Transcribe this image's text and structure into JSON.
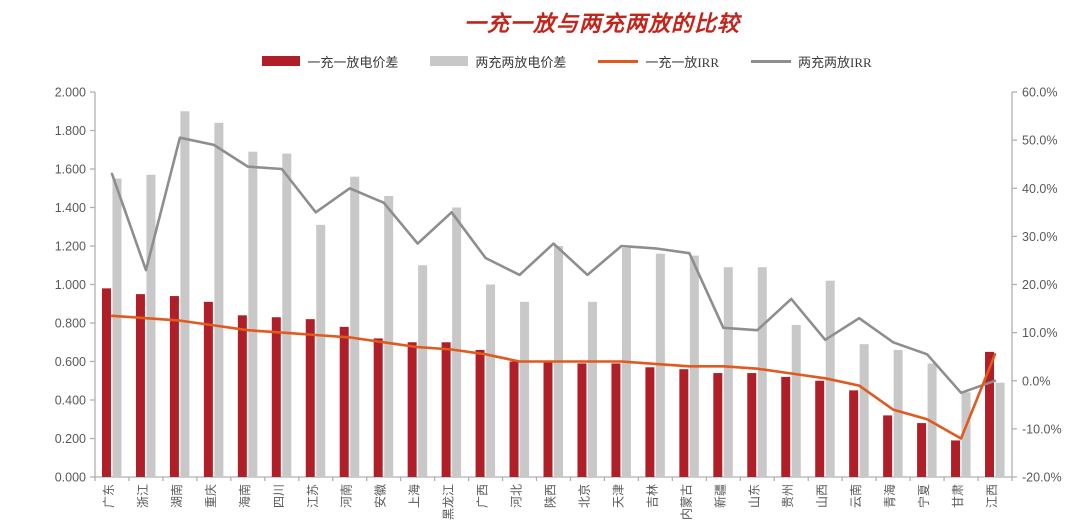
{
  "title": "一充一放与两充两放的比较",
  "legend": {
    "items": [
      {
        "label": "一充一放电价差",
        "swatch": "bar"
      },
      {
        "label": "两充两放电价差",
        "swatch": "bar"
      },
      {
        "label": "一充一放IRR",
        "swatch": "line"
      },
      {
        "label": "两充两放IRR",
        "swatch": "line"
      }
    ]
  },
  "colors": {
    "title_red": "#c1261d",
    "bar_red": "#b01e28",
    "bar_gray": "#c8c8c8",
    "line_orange": "#e05a1f",
    "line_gray": "#8e8e8e",
    "axis_line": "#b0b0b0",
    "tick_label": "#595959"
  },
  "chart_data": {
    "type": "bar",
    "subtype": "dual-axis bar+line combo",
    "title": "一充一放与两充两放的比较",
    "grid": false,
    "legend_position": "top",
    "categories": [
      "广东",
      "浙江",
      "湖南",
      "重庆",
      "海南",
      "四川",
      "江苏",
      "河南",
      "安徽",
      "上海",
      "黑龙江",
      "广西",
      "河北",
      "陕西",
      "北京",
      "天津",
      "吉林",
      "内蒙古",
      "新疆",
      "山东",
      "贵州",
      "山西",
      "云南",
      "青海",
      "宁夏",
      "甘肃",
      "江西"
    ],
    "series": [
      {
        "name": "一充一放电价差",
        "type": "bar",
        "axis": "left",
        "color": "#b01e28",
        "values": [
          0.98,
          0.95,
          0.94,
          0.91,
          0.84,
          0.83,
          0.82,
          0.78,
          0.72,
          0.7,
          0.7,
          0.66,
          0.6,
          0.6,
          0.59,
          0.59,
          0.57,
          0.56,
          0.54,
          0.54,
          0.52,
          0.5,
          0.45,
          0.32,
          0.28,
          0.19,
          0.65
        ]
      },
      {
        "name": "两充两放电价差",
        "type": "bar",
        "axis": "left",
        "color": "#c8c8c8",
        "values": [
          1.55,
          1.57,
          1.9,
          1.84,
          1.69,
          1.68,
          1.31,
          1.56,
          1.46,
          1.1,
          1.4,
          1.0,
          0.91,
          1.2,
          0.91,
          1.19,
          1.16,
          1.15,
          1.09,
          1.09,
          0.79,
          1.02,
          0.69,
          0.66,
          0.59,
          0.44,
          0.49
        ]
      },
      {
        "name": "一充一放IRR",
        "type": "line",
        "axis": "right",
        "color": "#e05a1f",
        "values": [
          13.5,
          13,
          12.5,
          11.5,
          10.5,
          10,
          9.5,
          9,
          8,
          7,
          6.5,
          5.5,
          4,
          4,
          4,
          4,
          3.5,
          3,
          3,
          2.5,
          1.5,
          0.5,
          -1,
          -6,
          -8,
          -12,
          5.5
        ]
      },
      {
        "name": "两充两放IRR",
        "type": "line",
        "axis": "right",
        "color": "#8e8e8e",
        "values": [
          43,
          23,
          50.5,
          49,
          44.5,
          44,
          35,
          40,
          37,
          28.5,
          35,
          25.5,
          22,
          28.5,
          22,
          28,
          27.5,
          26.5,
          11,
          10.5,
          17,
          8.5,
          13,
          8,
          5.5,
          -2.5,
          0
        ]
      }
    ],
    "left_axis": {
      "min": 0,
      "max": 2,
      "step": 0.2,
      "tick_labels": [
        "0.000",
        "0.200",
        "0.400",
        "0.600",
        "0.800",
        "1.000",
        "1.200",
        "1.400",
        "1.600",
        "1.800",
        "2.000"
      ]
    },
    "right_axis": {
      "min": -20,
      "max": 60,
      "step": 10,
      "tick_labels": [
        "-20.0%",
        "-10.0%",
        "0.0%",
        "10.0%",
        "20.0%",
        "30.0%",
        "40.0%",
        "50.0%",
        "60.0%"
      ]
    }
  }
}
